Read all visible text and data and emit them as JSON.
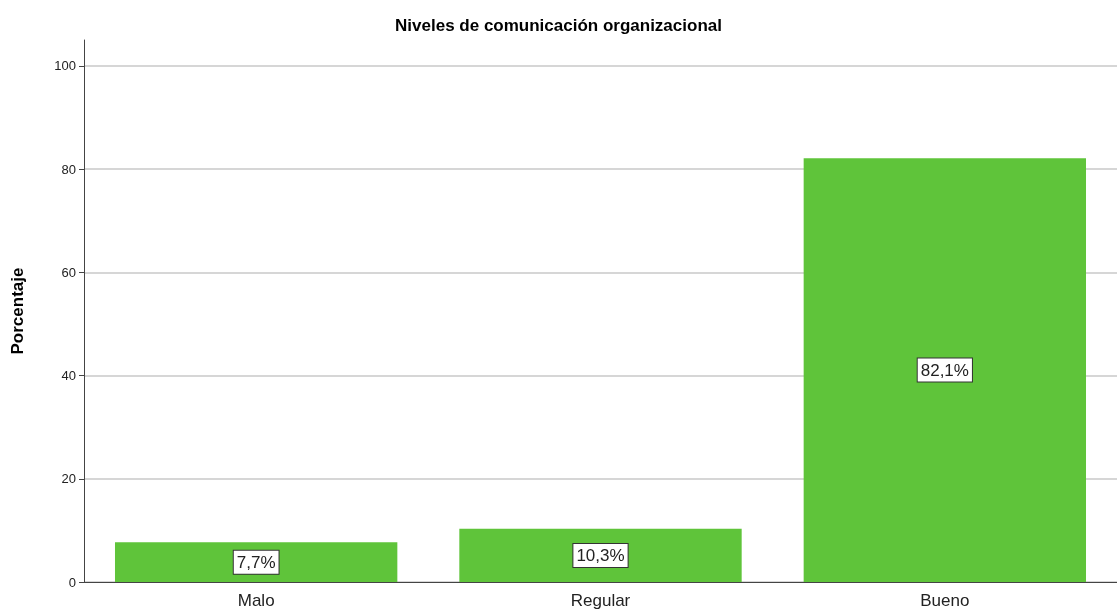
{
  "chart_data": {
    "type": "bar",
    "title": "Niveles de comunicación organizacional",
    "ylabel": "Porcentaje",
    "categories": [
      "Malo",
      "Regular",
      "Bueno"
    ],
    "values": [
      7.7,
      10.3,
      82.1
    ],
    "value_labels": [
      "7,7%",
      "10,3%",
      "82,1%"
    ],
    "color": "#5fc43a",
    "ylim": [
      0,
      105
    ],
    "yticks": [
      0,
      20,
      40,
      60,
      80,
      100
    ],
    "grid": "y"
  }
}
